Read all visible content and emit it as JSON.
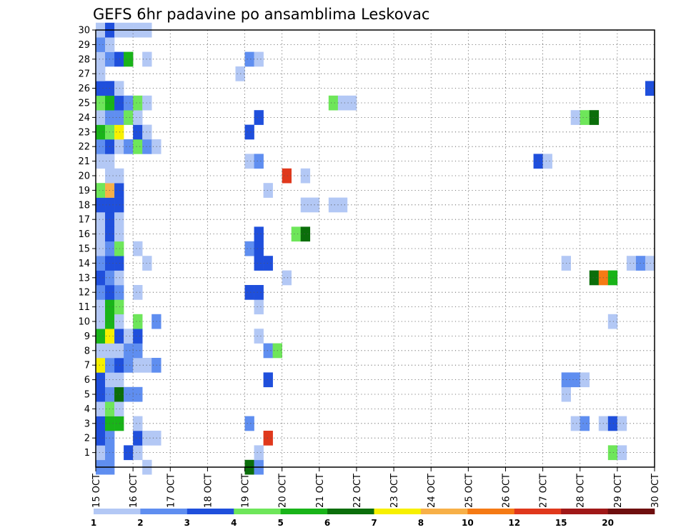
{
  "chart_data": {
    "type": "heatmap",
    "title": "GEFS 6hr padavine po ansamblima Leskovac",
    "xlabel": "",
    "ylabel": "",
    "x_tick_labels": [
      "15 OCT",
      "16 OCT",
      "17 OCT",
      "18 OCT",
      "19 OCT",
      "20 OCT",
      "21 OCT",
      "22 OCT",
      "23 OCT",
      "24 OCT",
      "25 OCT",
      "26 OCT",
      "27 OCT",
      "28 OCT",
      "29 OCT",
      "30 OCT"
    ],
    "y_tick_labels": [
      "1",
      "2",
      "3",
      "4",
      "5",
      "6",
      "7",
      "8",
      "9",
      "10",
      "11",
      "12",
      "13",
      "14",
      "15",
      "16",
      "17",
      "18",
      "19",
      "20",
      "21",
      "22",
      "23",
      "24",
      "25",
      "26",
      "27",
      "28",
      "29",
      "30"
    ],
    "xlim_days": [
      0,
      15
    ],
    "ylim_members": [
      0,
      30
    ],
    "step_days": 0.25,
    "grid": "dotted",
    "legend_placement": "bottom",
    "colorbar": {
      "labels": [
        "1",
        "2",
        "3",
        "4",
        "5",
        "6",
        "7",
        "8",
        "10",
        "12",
        "15",
        "20"
      ],
      "colors": [
        "#b3c8f5",
        "#5f8ef0",
        "#1f4fdc",
        "#6ee65a",
        "#19b419",
        "#0b6e0b",
        "#f7f000",
        "#f7b048",
        "#f57a14",
        "#e0381c",
        "#a01818",
        "#6e0f0f"
      ]
    },
    "cells": [
      {
        "m": 0,
        "s": 0,
        "c": 1
      },
      {
        "m": 0,
        "s": 1,
        "c": 1
      },
      {
        "m": 0,
        "s": 5,
        "c": 0
      },
      {
        "m": 0,
        "s": 16,
        "c": 5
      },
      {
        "m": 0,
        "s": 17,
        "c": 1
      },
      {
        "m": 1,
        "s": 0,
        "c": 0
      },
      {
        "m": 1,
        "s": 1,
        "c": 1
      },
      {
        "m": 1,
        "s": 3,
        "c": 2
      },
      {
        "m": 1,
        "s": 4,
        "c": 0
      },
      {
        "m": 1,
        "s": 17,
        "c": 0
      },
      {
        "m": 1,
        "s": 55,
        "c": 3
      },
      {
        "m": 1,
        "s": 56,
        "c": 0
      },
      {
        "m": 2,
        "s": 0,
        "c": 2
      },
      {
        "m": 2,
        "s": 1,
        "c": 1
      },
      {
        "m": 2,
        "s": 4,
        "c": 2
      },
      {
        "m": 2,
        "s": 5,
        "c": 0
      },
      {
        "m": 2,
        "s": 6,
        "c": 0
      },
      {
        "m": 2,
        "s": 18,
        "c": 9
      },
      {
        "m": 3,
        "s": 0,
        "c": 2
      },
      {
        "m": 3,
        "s": 1,
        "c": 4
      },
      {
        "m": 3,
        "s": 2,
        "c": 4
      },
      {
        "m": 3,
        "s": 4,
        "c": 0
      },
      {
        "m": 3,
        "s": 16,
        "c": 1
      },
      {
        "m": 3,
        "s": 51,
        "c": 0
      },
      {
        "m": 3,
        "s": 52,
        "c": 1
      },
      {
        "m": 3,
        "s": 54,
        "c": 0
      },
      {
        "m": 3,
        "s": 55,
        "c": 2
      },
      {
        "m": 3,
        "s": 56,
        "c": 0
      },
      {
        "m": 4,
        "s": 0,
        "c": 0
      },
      {
        "m": 4,
        "s": 1,
        "c": 3
      },
      {
        "m": 4,
        "s": 2,
        "c": 0
      },
      {
        "m": 5,
        "s": 0,
        "c": 2
      },
      {
        "m": 5,
        "s": 1,
        "c": 1
      },
      {
        "m": 5,
        "s": 2,
        "c": 5
      },
      {
        "m": 5,
        "s": 3,
        "c": 1
      },
      {
        "m": 5,
        "s": 4,
        "c": 1
      },
      {
        "m": 5,
        "s": 50,
        "c": 0
      },
      {
        "m": 6,
        "s": 0,
        "c": 2
      },
      {
        "m": 6,
        "s": 1,
        "c": 0
      },
      {
        "m": 6,
        "s": 2,
        "c": 0
      },
      {
        "m": 6,
        "s": 18,
        "c": 2
      },
      {
        "m": 6,
        "s": 50,
        "c": 1
      },
      {
        "m": 6,
        "s": 51,
        "c": 1
      },
      {
        "m": 6,
        "s": 52,
        "c": 0
      },
      {
        "m": 7,
        "s": 0,
        "c": 6
      },
      {
        "m": 7,
        "s": 1,
        "c": 1
      },
      {
        "m": 7,
        "s": 2,
        "c": 2
      },
      {
        "m": 7,
        "s": 3,
        "c": 1
      },
      {
        "m": 7,
        "s": 4,
        "c": 0
      },
      {
        "m": 7,
        "s": 5,
        "c": 0
      },
      {
        "m": 7,
        "s": 6,
        "c": 1
      },
      {
        "m": 8,
        "s": 0,
        "c": 0
      },
      {
        "m": 8,
        "s": 1,
        "c": 0
      },
      {
        "m": 8,
        "s": 2,
        "c": 0
      },
      {
        "m": 8,
        "s": 3,
        "c": 1
      },
      {
        "m": 8,
        "s": 4,
        "c": 1
      },
      {
        "m": 8,
        "s": 18,
        "c": 1
      },
      {
        "m": 8,
        "s": 19,
        "c": 3
      },
      {
        "m": 9,
        "s": 0,
        "c": 4
      },
      {
        "m": 9,
        "s": 1,
        "c": 6
      },
      {
        "m": 9,
        "s": 2,
        "c": 2
      },
      {
        "m": 9,
        "s": 3,
        "c": 0
      },
      {
        "m": 9,
        "s": 4,
        "c": 2
      },
      {
        "m": 9,
        "s": 17,
        "c": 0
      },
      {
        "m": 10,
        "s": 0,
        "c": 0
      },
      {
        "m": 10,
        "s": 1,
        "c": 4
      },
      {
        "m": 10,
        "s": 2,
        "c": 0
      },
      {
        "m": 10,
        "s": 4,
        "c": 3
      },
      {
        "m": 10,
        "s": 6,
        "c": 1
      },
      {
        "m": 10,
        "s": 55,
        "c": 0
      },
      {
        "m": 11,
        "s": 0,
        "c": 0
      },
      {
        "m": 11,
        "s": 1,
        "c": 4
      },
      {
        "m": 11,
        "s": 2,
        "c": 3
      },
      {
        "m": 11,
        "s": 17,
        "c": 0
      },
      {
        "m": 12,
        "s": 0,
        "c": 1
      },
      {
        "m": 12,
        "s": 1,
        "c": 2
      },
      {
        "m": 12,
        "s": 2,
        "c": 1
      },
      {
        "m": 12,
        "s": 4,
        "c": 0
      },
      {
        "m": 12,
        "s": 16,
        "c": 2
      },
      {
        "m": 12,
        "s": 17,
        "c": 2
      },
      {
        "m": 13,
        "s": 0,
        "c": 2
      },
      {
        "m": 13,
        "s": 1,
        "c": 1
      },
      {
        "m": 13,
        "s": 2,
        "c": 0
      },
      {
        "m": 13,
        "s": 20,
        "c": 0
      },
      {
        "m": 13,
        "s": 53,
        "c": 5
      },
      {
        "m": 13,
        "s": 54,
        "c": 8
      },
      {
        "m": 13,
        "s": 55,
        "c": 4
      },
      {
        "m": 14,
        "s": 0,
        "c": 1
      },
      {
        "m": 14,
        "s": 1,
        "c": 2
      },
      {
        "m": 14,
        "s": 2,
        "c": 2
      },
      {
        "m": 14,
        "s": 5,
        "c": 0
      },
      {
        "m": 14,
        "s": 17,
        "c": 2
      },
      {
        "m": 14,
        "s": 18,
        "c": 2
      },
      {
        "m": 14,
        "s": 50,
        "c": 0
      },
      {
        "m": 14,
        "s": 57,
        "c": 0
      },
      {
        "m": 14,
        "s": 58,
        "c": 1
      },
      {
        "m": 14,
        "s": 59,
        "c": 0
      },
      {
        "m": 15,
        "s": 0,
        "c": 0
      },
      {
        "m": 15,
        "s": 1,
        "c": 1
      },
      {
        "m": 15,
        "s": 2,
        "c": 3
      },
      {
        "m": 15,
        "s": 4,
        "c": 0
      },
      {
        "m": 15,
        "s": 16,
        "c": 1
      },
      {
        "m": 15,
        "s": 17,
        "c": 2
      },
      {
        "m": 16,
        "s": 0,
        "c": 0
      },
      {
        "m": 16,
        "s": 1,
        "c": 2
      },
      {
        "m": 16,
        "s": 2,
        "c": 0
      },
      {
        "m": 16,
        "s": 17,
        "c": 2
      },
      {
        "m": 16,
        "s": 21,
        "c": 3
      },
      {
        "m": 16,
        "s": 22,
        "c": 5
      },
      {
        "m": 17,
        "s": 0,
        "c": 0
      },
      {
        "m": 17,
        "s": 1,
        "c": 2
      },
      {
        "m": 17,
        "s": 2,
        "c": 0
      },
      {
        "m": 18,
        "s": 0,
        "c": 2
      },
      {
        "m": 18,
        "s": 1,
        "c": 2
      },
      {
        "m": 18,
        "s": 2,
        "c": 2
      },
      {
        "m": 18,
        "s": 22,
        "c": 0
      },
      {
        "m": 18,
        "s": 23,
        "c": 0
      },
      {
        "m": 18,
        "s": 25,
        "c": 0
      },
      {
        "m": 18,
        "s": 26,
        "c": 0
      },
      {
        "m": 19,
        "s": 0,
        "c": 3
      },
      {
        "m": 19,
        "s": 1,
        "c": 7
      },
      {
        "m": 19,
        "s": 2,
        "c": 2
      },
      {
        "m": 19,
        "s": 18,
        "c": 0
      },
      {
        "m": 20,
        "s": 1,
        "c": 0
      },
      {
        "m": 20,
        "s": 2,
        "c": 0
      },
      {
        "m": 20,
        "s": 20,
        "c": 9
      },
      {
        "m": 20,
        "s": 22,
        "c": 0
      },
      {
        "m": 21,
        "s": 0,
        "c": 0
      },
      {
        "m": 21,
        "s": 1,
        "c": 0
      },
      {
        "m": 21,
        "s": 16,
        "c": 0
      },
      {
        "m": 21,
        "s": 17,
        "c": 1
      },
      {
        "m": 21,
        "s": 47,
        "c": 2
      },
      {
        "m": 21,
        "s": 48,
        "c": 0
      },
      {
        "m": 22,
        "s": 0,
        "c": 1
      },
      {
        "m": 22,
        "s": 1,
        "c": 2
      },
      {
        "m": 22,
        "s": 2,
        "c": 0
      },
      {
        "m": 22,
        "s": 3,
        "c": 1
      },
      {
        "m": 22,
        "s": 4,
        "c": 3
      },
      {
        "m": 22,
        "s": 5,
        "c": 1
      },
      {
        "m": 22,
        "s": 6,
        "c": 0
      },
      {
        "m": 23,
        "s": 0,
        "c": 4
      },
      {
        "m": 23,
        "s": 1,
        "c": 3
      },
      {
        "m": 23,
        "s": 2,
        "c": 6
      },
      {
        "m": 23,
        "s": 4,
        "c": 2
      },
      {
        "m": 23,
        "s": 5,
        "c": 0
      },
      {
        "m": 23,
        "s": 16,
        "c": 2
      },
      {
        "m": 24,
        "s": 0,
        "c": 0
      },
      {
        "m": 24,
        "s": 1,
        "c": 1
      },
      {
        "m": 24,
        "s": 2,
        "c": 1
      },
      {
        "m": 24,
        "s": 3,
        "c": 3
      },
      {
        "m": 24,
        "s": 4,
        "c": 0
      },
      {
        "m": 24,
        "s": 17,
        "c": 2
      },
      {
        "m": 24,
        "s": 51,
        "c": 0
      },
      {
        "m": 24,
        "s": 52,
        "c": 3
      },
      {
        "m": 24,
        "s": 53,
        "c": 5
      },
      {
        "m": 25,
        "s": 0,
        "c": 3
      },
      {
        "m": 25,
        "s": 1,
        "c": 4
      },
      {
        "m": 25,
        "s": 2,
        "c": 2
      },
      {
        "m": 25,
        "s": 3,
        "c": 1
      },
      {
        "m": 25,
        "s": 4,
        "c": 3
      },
      {
        "m": 25,
        "s": 5,
        "c": 0
      },
      {
        "m": 25,
        "s": 25,
        "c": 3
      },
      {
        "m": 25,
        "s": 26,
        "c": 0
      },
      {
        "m": 25,
        "s": 27,
        "c": 0
      },
      {
        "m": 26,
        "s": 0,
        "c": 2
      },
      {
        "m": 26,
        "s": 1,
        "c": 2
      },
      {
        "m": 26,
        "s": 2,
        "c": 0
      },
      {
        "m": 26,
        "s": 59,
        "c": 2
      },
      {
        "m": 27,
        "s": 0,
        "c": 0
      },
      {
        "m": 27,
        "s": 15,
        "c": 0
      },
      {
        "m": 28,
        "s": 0,
        "c": 0
      },
      {
        "m": 28,
        "s": 1,
        "c": 1
      },
      {
        "m": 28,
        "s": 2,
        "c": 2
      },
      {
        "m": 28,
        "s": 3,
        "c": 4
      },
      {
        "m": 28,
        "s": 5,
        "c": 0
      },
      {
        "m": 28,
        "s": 16,
        "c": 1
      },
      {
        "m": 28,
        "s": 17,
        "c": 0
      },
      {
        "m": 29,
        "s": 0,
        "c": 1
      },
      {
        "m": 29,
        "s": 1,
        "c": 0
      },
      {
        "m": 30,
        "s": 0,
        "c": 0
      },
      {
        "m": 30,
        "s": 1,
        "c": 2
      },
      {
        "m": 30,
        "s": 2,
        "c": 0
      },
      {
        "m": 30,
        "s": 3,
        "c": 0
      },
      {
        "m": 30,
        "s": 4,
        "c": 0
      },
      {
        "m": 30,
        "s": 5,
        "c": 0
      }
    ]
  }
}
